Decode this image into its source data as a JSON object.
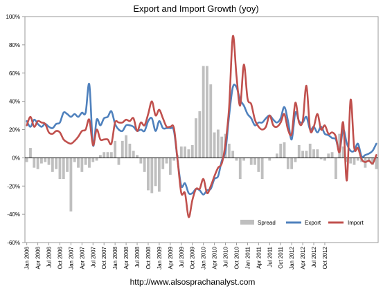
{
  "chart_data": {
    "type": "bar+line",
    "title": "Export and Import Growth (yoy)",
    "footer": "http://www.alsosprachanalyst.com",
    "y_tick_labels": [
      "100%",
      "80%",
      "60%",
      "40%",
      "20%",
      "0%",
      "-20%",
      "-40%",
      "-60%"
    ],
    "ylim": [
      -60,
      100
    ],
    "y_unit": "%",
    "grid": false,
    "legend_position": "bottom-right",
    "x_tick_labels": [
      "Jan 2006",
      "Apr 2006",
      "Jul 2006",
      "Oct 2006",
      "Jan 2007",
      "Apr 2007",
      "Jul 2007",
      "Oct 2007",
      "Jan 2008",
      "Apr 2008",
      "Jul 2008",
      "Oct 2008",
      "Jan 2009",
      "Apr 2009",
      "Jul 2009",
      "Oct 2009",
      "Jan 2010",
      "Apr 2010",
      "Jul 2010",
      "Oct 2010",
      "Jan 2011",
      "Apr 2011",
      "Jul 2011",
      "Oct 2011",
      "Jan 2012",
      "Apr 2012",
      "Jul 2012",
      "Oct 2012"
    ],
    "x_start": "Jan 2006",
    "series": [
      {
        "name": "Spread",
        "kind": "bar",
        "color": "#bfbfbf",
        "values": [
          -3,
          7,
          -7,
          -8,
          -4,
          -3,
          -5,
          -10,
          -8,
          -15,
          -15,
          -10,
          -38,
          -3,
          -7,
          -10,
          -5,
          -7,
          -3,
          -2,
          2,
          4,
          4,
          4,
          12,
          -5,
          12,
          16,
          10,
          5,
          2,
          -4,
          -10,
          -23,
          -25,
          -20,
          -24,
          -8,
          -4,
          -12,
          -2,
          2,
          8,
          8,
          6,
          9,
          28,
          33,
          65,
          65,
          52,
          18,
          20,
          15,
          17,
          10,
          5,
          -2,
          -15,
          -2,
          0,
          -5,
          -5,
          -10,
          -15,
          0,
          -2,
          0,
          3,
          10,
          11,
          -8,
          -8,
          -3,
          9,
          5,
          5,
          10,
          6,
          6,
          -1,
          -2,
          3,
          4,
          -15,
          17,
          8,
          -3,
          -4,
          -5,
          -2,
          -3,
          -7,
          -3,
          -5,
          -8
        ]
      },
      {
        "name": "Export",
        "kind": "line",
        "color": "#4f81bd",
        "values": [
          26,
          22,
          27,
          24,
          22,
          24,
          22,
          21,
          24,
          25,
          32,
          31,
          29,
          31,
          29,
          32,
          32,
          52,
          9,
          27,
          23,
          28,
          29,
          33,
          24,
          20,
          19,
          23,
          23,
          22,
          19,
          20,
          19,
          26,
          28,
          19,
          26,
          21,
          21,
          21,
          19,
          -2,
          -20,
          -18,
          -25,
          -25,
          -22,
          -23,
          -26,
          -23,
          -22,
          -15,
          -13,
          -2,
          5,
          30,
          50,
          50,
          41,
          37,
          31,
          28,
          23,
          25,
          25,
          28,
          30,
          27,
          25,
          28,
          36,
          26,
          13,
          32,
          26,
          25,
          29,
          20,
          22,
          18,
          22,
          17,
          16,
          14,
          13,
          5,
          20,
          10,
          5,
          5,
          10,
          1,
          2,
          3,
          5,
          10
        ]
      },
      {
        "name": "Import",
        "kind": "line",
        "color": "#c0504d",
        "values": [
          23,
          29,
          22,
          26,
          25,
          24,
          18,
          17,
          19,
          18,
          13,
          11,
          10,
          12,
          15,
          19,
          20,
          27,
          9,
          20,
          13,
          13,
          13,
          10,
          25,
          25,
          25,
          27,
          26,
          28,
          19,
          25,
          23,
          31,
          40,
          30,
          34,
          28,
          22,
          22,
          21,
          -2,
          -25,
          -25,
          -42,
          -30,
          -22,
          -22,
          -15,
          -25,
          -20,
          -13,
          -7,
          -4,
          10,
          36,
          86,
          58,
          37,
          66,
          42,
          38,
          27,
          22,
          20,
          22,
          30,
          23,
          22,
          25,
          31,
          20,
          17,
          39,
          25,
          26,
          51,
          20,
          22,
          31,
          20,
          23,
          17,
          18,
          15,
          4,
          25,
          -16,
          41,
          7,
          7,
          -1,
          -3,
          -2,
          -4,
          2
        ]
      }
    ]
  }
}
